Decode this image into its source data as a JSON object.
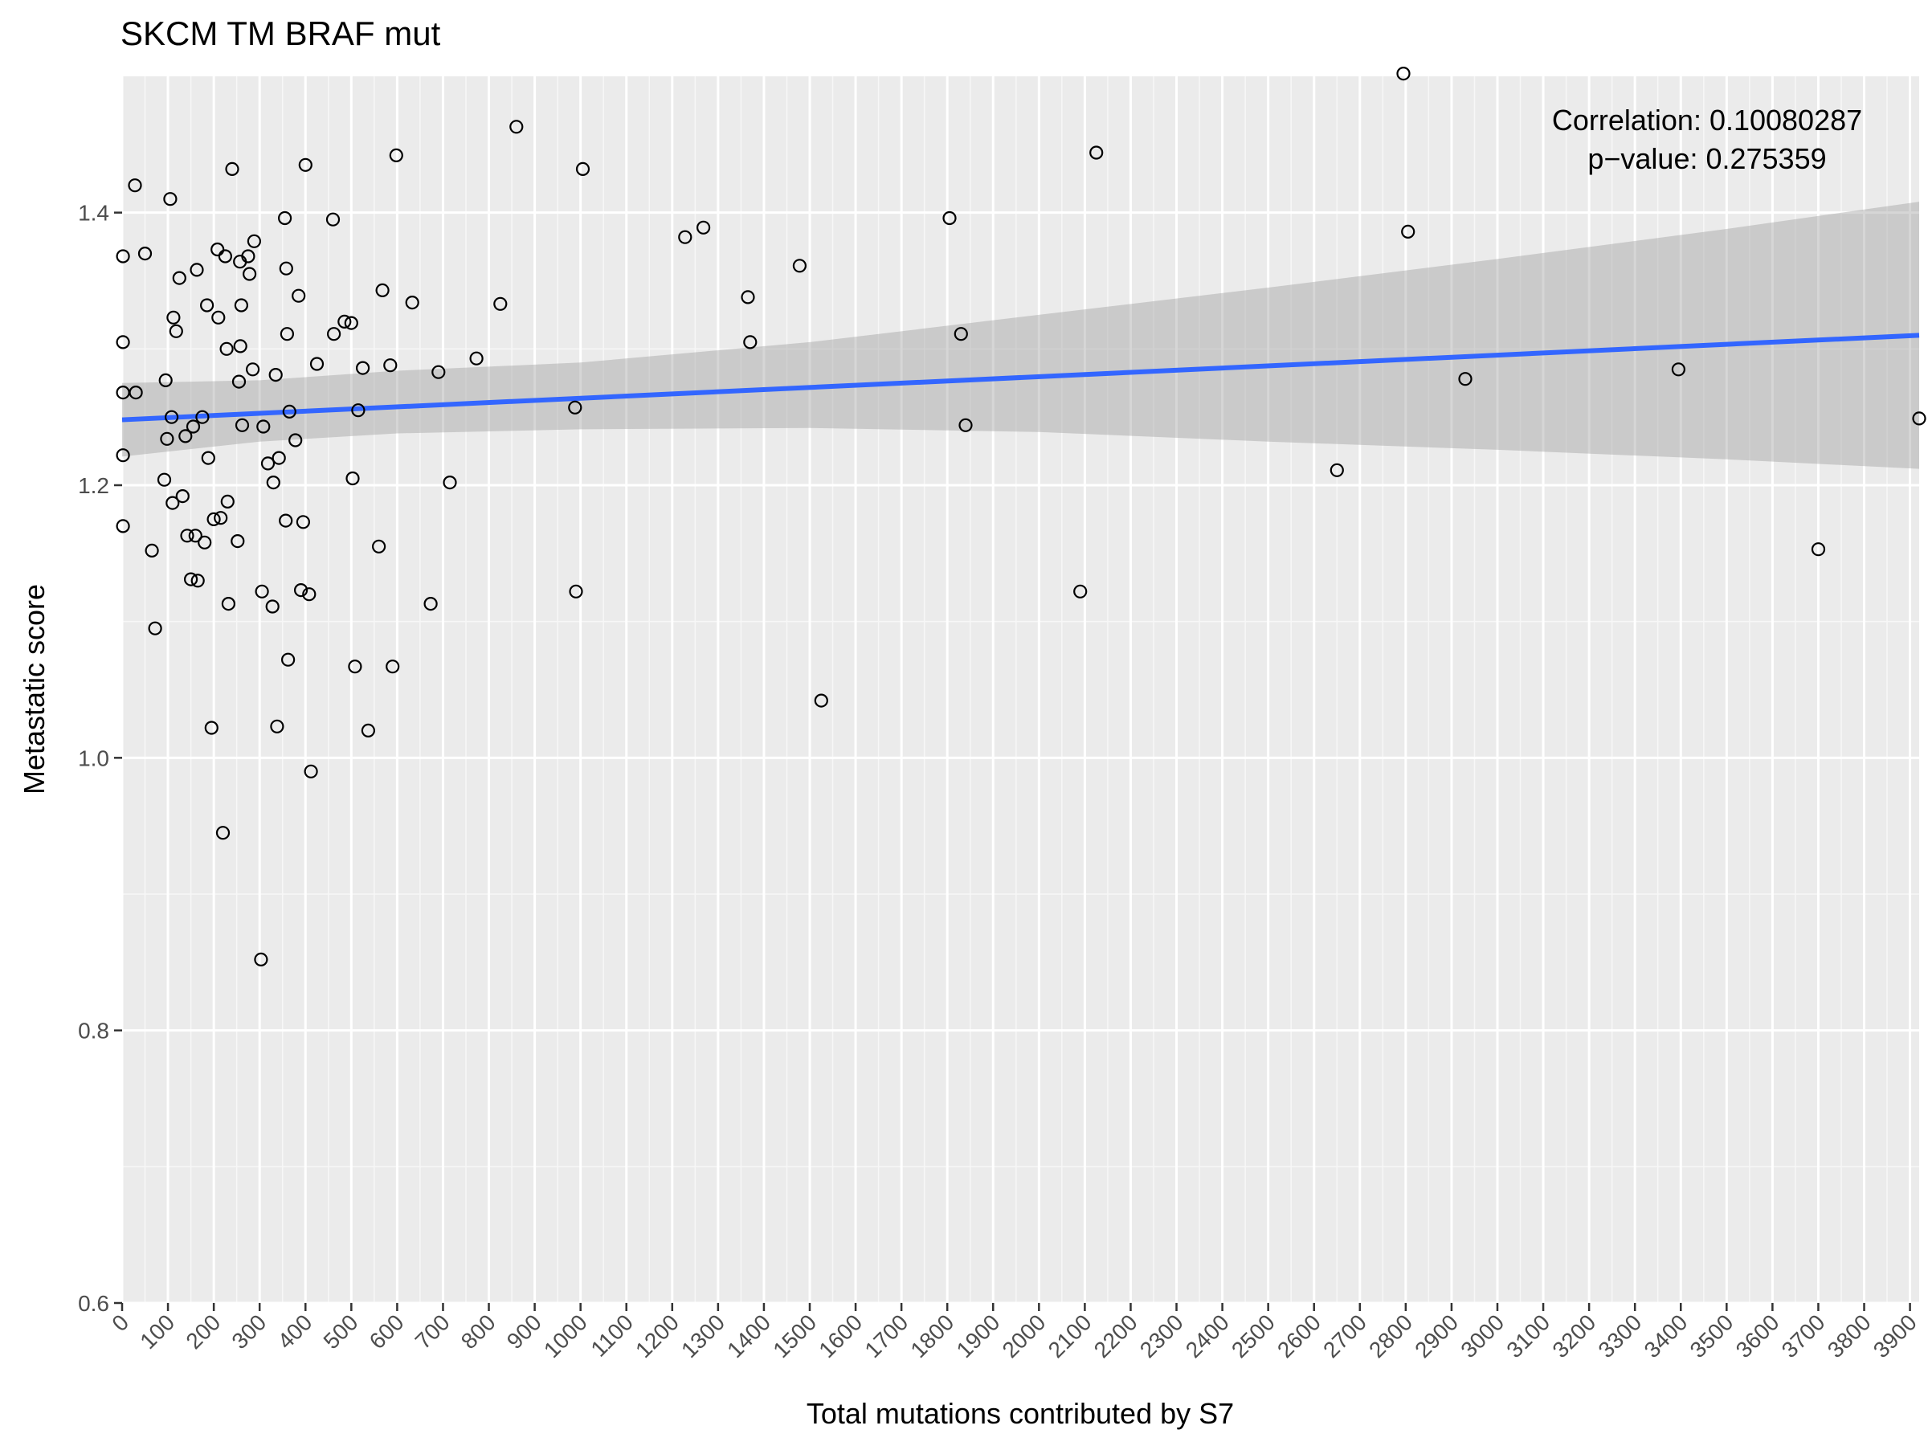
{
  "chart_data": {
    "type": "scatter",
    "title": "SKCM TM BRAF mut",
    "xlabel": "Total mutations contributed by S7",
    "ylabel": "Metastatic score",
    "xlim": [
      0,
      3920
    ],
    "ylim": [
      0.6,
      1.5
    ],
    "x_ticks": [
      "0",
      "100",
      "200",
      "300",
      "400",
      "500",
      "600",
      "700",
      "800",
      "900",
      "1000",
      "1100",
      "1200",
      "1300",
      "1400",
      "1500",
      "1600",
      "1700",
      "1800",
      "1900",
      "2000",
      "2100",
      "2200",
      "2300",
      "2400",
      "2500",
      "2600",
      "2700",
      "2800",
      "2900",
      "3000",
      "3100",
      "3200",
      "3300",
      "3400",
      "3500",
      "3600",
      "3700",
      "3800",
      "3900"
    ],
    "y_ticks": [
      "0.6",
      "0.8",
      "1.0",
      "1.2",
      "1.4"
    ],
    "annotation": {
      "correlation": "Correlation: 0.10080287",
      "pvalue": "p−value: 0.275359"
    },
    "grid": true,
    "background": "#ebebeb",
    "point_color": "#000000",
    "line_color": "#3366ff",
    "band_color": "#999999",
    "regression": {
      "x": [
        0,
        3920
      ],
      "y": [
        1.248,
        1.31
      ],
      "band_upper": [
        [
          0,
          1.275
        ],
        [
          300,
          1.277
        ],
        [
          600,
          1.284
        ],
        [
          1000,
          1.29
        ],
        [
          1500,
          1.305
        ],
        [
          2000,
          1.325
        ],
        [
          2500,
          1.345
        ],
        [
          3000,
          1.366
        ],
        [
          3500,
          1.388
        ],
        [
          3920,
          1.408
        ]
      ],
      "band_lower": [
        [
          0,
          1.221
        ],
        [
          300,
          1.232
        ],
        [
          600,
          1.238
        ],
        [
          1000,
          1.241
        ],
        [
          1500,
          1.242
        ],
        [
          2000,
          1.239
        ],
        [
          2500,
          1.232
        ],
        [
          3000,
          1.226
        ],
        [
          3500,
          1.219
        ],
        [
          3920,
          1.212
        ]
      ]
    },
    "points": [
      [
        2,
        1.368
      ],
      [
        2,
        1.305
      ],
      [
        2,
        1.268
      ],
      [
        2,
        1.222
      ],
      [
        2,
        1.17
      ],
      [
        28,
        1.42
      ],
      [
        30,
        1.268
      ],
      [
        50,
        1.37
      ],
      [
        65,
        1.152
      ],
      [
        72,
        1.095
      ],
      [
        92,
        1.204
      ],
      [
        95,
        1.277
      ],
      [
        98,
        1.234
      ],
      [
        105,
        1.41
      ],
      [
        108,
        1.25
      ],
      [
        110,
        1.187
      ],
      [
        112,
        1.323
      ],
      [
        118,
        1.313
      ],
      [
        125,
        1.352
      ],
      [
        132,
        1.192
      ],
      [
        138,
        1.236
      ],
      [
        142,
        1.163
      ],
      [
        150,
        1.131
      ],
      [
        155,
        1.243
      ],
      [
        160,
        1.163
      ],
      [
        163,
        1.358
      ],
      [
        165,
        1.13
      ],
      [
        175,
        1.25
      ],
      [
        180,
        1.158
      ],
      [
        185,
        1.332
      ],
      [
        188,
        1.22
      ],
      [
        195,
        1.022
      ],
      [
        200,
        1.175
      ],
      [
        208,
        1.373
      ],
      [
        210,
        1.323
      ],
      [
        215,
        1.176
      ],
      [
        220,
        0.945
      ],
      [
        225,
        1.368
      ],
      [
        228,
        1.3
      ],
      [
        230,
        1.188
      ],
      [
        232,
        1.113
      ],
      [
        240,
        1.432
      ],
      [
        252,
        1.159
      ],
      [
        255,
        1.276
      ],
      [
        257,
        1.364
      ],
      [
        258,
        1.302
      ],
      [
        260,
        1.332
      ],
      [
        262,
        1.244
      ],
      [
        275,
        1.368
      ],
      [
        278,
        1.355
      ],
      [
        285,
        1.285
      ],
      [
        288,
        1.379
      ],
      [
        303,
        0.852
      ],
      [
        305,
        1.122
      ],
      [
        308,
        1.243
      ],
      [
        318,
        1.216
      ],
      [
        328,
        1.111
      ],
      [
        330,
        1.202
      ],
      [
        335,
        1.281
      ],
      [
        338,
        1.023
      ],
      [
        342,
        1.22
      ],
      [
        355,
        1.396
      ],
      [
        357,
        1.174
      ],
      [
        358,
        1.359
      ],
      [
        360,
        1.311
      ],
      [
        362,
        1.072
      ],
      [
        365,
        1.254
      ],
      [
        378,
        1.233
      ],
      [
        385,
        1.339
      ],
      [
        390,
        1.123
      ],
      [
        395,
        1.173
      ],
      [
        400,
        1.435
      ],
      [
        408,
        1.12
      ],
      [
        412,
        0.99
      ],
      [
        425,
        1.289
      ],
      [
        460,
        1.395
      ],
      [
        462,
        1.311
      ],
      [
        485,
        1.32
      ],
      [
        500,
        1.319
      ],
      [
        503,
        1.205
      ],
      [
        508,
        1.067
      ],
      [
        515,
        1.255
      ],
      [
        525,
        1.286
      ],
      [
        537,
        1.02
      ],
      [
        560,
        1.155
      ],
      [
        568,
        1.343
      ],
      [
        585,
        1.288
      ],
      [
        590,
        1.067
      ],
      [
        598,
        1.442
      ],
      [
        633,
        1.334
      ],
      [
        673,
        1.113
      ],
      [
        690,
        1.283
      ],
      [
        715,
        1.202
      ],
      [
        773,
        1.293
      ],
      [
        825,
        1.333
      ],
      [
        860,
        1.463
      ],
      [
        988,
        1.257
      ],
      [
        990,
        1.122
      ],
      [
        1005,
        1.432
      ],
      [
        1228,
        1.382
      ],
      [
        1268,
        1.389
      ],
      [
        1365,
        1.338
      ],
      [
        1370,
        1.305
      ],
      [
        1478,
        1.361
      ],
      [
        1525,
        1.042
      ],
      [
        1805,
        1.396
      ],
      [
        1830,
        1.311
      ],
      [
        1840,
        1.244
      ],
      [
        2090,
        1.122
      ],
      [
        2125,
        1.444
      ],
      [
        2650,
        1.211
      ],
      [
        2795,
        1.502
      ],
      [
        2805,
        1.386
      ],
      [
        2930,
        1.278
      ],
      [
        3395,
        1.285
      ],
      [
        3700,
        1.153
      ],
      [
        3920,
        1.249
      ]
    ]
  }
}
